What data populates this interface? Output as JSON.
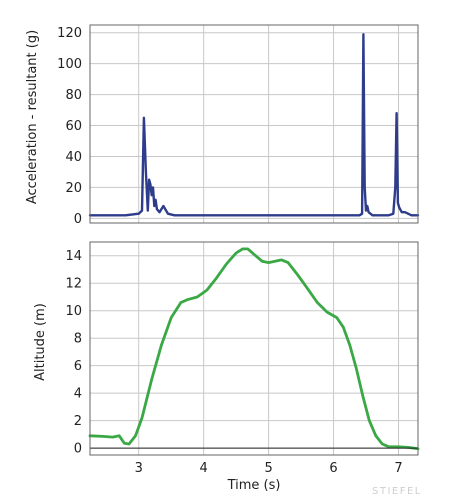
{
  "watermark": "STIEFEL",
  "chart_data": [
    {
      "type": "line",
      "ylabel": "Acceleration - resultant (g)",
      "xlabel": "",
      "xlim": [
        2.25,
        7.3
      ],
      "ylim": [
        -3,
        125
      ],
      "xticks": [
        3,
        4,
        5,
        6,
        7
      ],
      "yticks": [
        0,
        20,
        40,
        60,
        80,
        100,
        120
      ],
      "grid": true,
      "series": [
        {
          "color": "#2e3c8c",
          "x": [
            2.25,
            2.5,
            2.8,
            3.0,
            3.05,
            3.08,
            3.11,
            3.14,
            3.16,
            3.18,
            3.2,
            3.22,
            3.24,
            3.26,
            3.28,
            3.32,
            3.38,
            3.45,
            3.55,
            3.7,
            4.0,
            4.5,
            5.0,
            5.5,
            6.0,
            6.3,
            6.4,
            6.44,
            6.46,
            6.48,
            6.5,
            6.52,
            6.54,
            6.6,
            6.7,
            6.85,
            6.92,
            6.95,
            6.97,
            6.99,
            7.01,
            7.05,
            7.1,
            7.2,
            7.3
          ],
          "y": [
            2,
            2,
            2,
            3,
            5,
            65,
            30,
            5,
            25,
            22,
            15,
            20,
            8,
            12,
            6,
            4,
            8,
            3,
            2,
            2,
            2,
            2,
            2,
            2,
            2,
            2,
            2,
            3,
            119,
            20,
            5,
            8,
            4,
            2,
            2,
            2,
            3,
            20,
            68,
            10,
            7,
            4,
            4,
            2,
            2
          ]
        }
      ]
    },
    {
      "type": "line",
      "ylabel": "Altitude (m)",
      "xlabel": "Time (s)",
      "xlim": [
        2.25,
        7.3
      ],
      "ylim": [
        -0.5,
        15
      ],
      "xticks": [
        3,
        4,
        5,
        6,
        7
      ],
      "yticks": [
        0,
        2,
        4,
        6,
        8,
        10,
        12,
        14
      ],
      "grid": true,
      "series": [
        {
          "color": "#3aa845",
          "x": [
            2.25,
            2.45,
            2.6,
            2.7,
            2.78,
            2.85,
            2.95,
            3.05,
            3.2,
            3.35,
            3.5,
            3.65,
            3.75,
            3.9,
            4.05,
            4.2,
            4.35,
            4.5,
            4.6,
            4.68,
            4.8,
            4.9,
            5.0,
            5.1,
            5.2,
            5.3,
            5.45,
            5.6,
            5.75,
            5.9,
            6.05,
            6.15,
            6.25,
            6.35,
            6.45,
            6.55,
            6.65,
            6.75,
            6.85,
            7.0,
            7.15,
            7.3
          ],
          "y": [
            0.9,
            0.85,
            0.8,
            0.9,
            0.35,
            0.3,
            0.9,
            2.2,
            5.0,
            7.5,
            9.5,
            10.6,
            10.8,
            11.0,
            11.5,
            12.4,
            13.4,
            14.2,
            14.5,
            14.5,
            14.0,
            13.6,
            13.5,
            13.6,
            13.7,
            13.5,
            12.6,
            11.6,
            10.6,
            9.9,
            9.5,
            8.8,
            7.5,
            5.8,
            3.8,
            2.0,
            0.9,
            0.3,
            0.1,
            0.1,
            0.05,
            -0.05
          ]
        },
        {
          "color": "#222222",
          "x": [
            2.25,
            7.3
          ],
          "y": [
            0,
            0
          ]
        }
      ]
    }
  ]
}
